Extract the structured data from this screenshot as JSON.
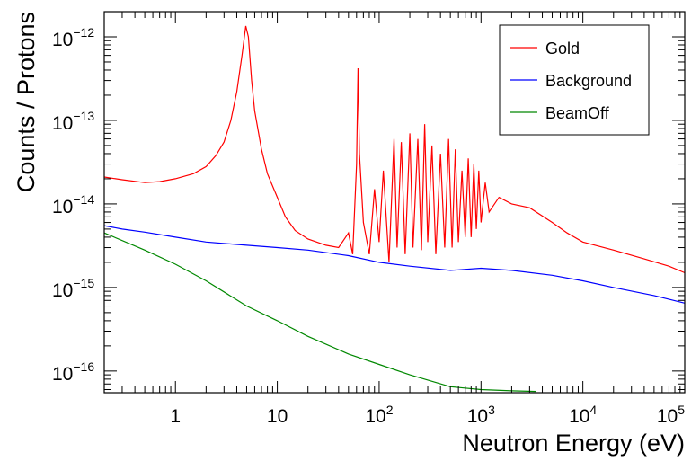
{
  "chart_data": {
    "type": "line",
    "title": "",
    "xlabel": "Neutron Energy (eV)",
    "ylabel": "Counts / Protons",
    "xscale": "log",
    "yscale": "log",
    "xlim": [
      0.2,
      100000
    ],
    "ylim": [
      5.5e-17,
      2e-12
    ],
    "grid": false,
    "legend_position": "top-right",
    "x_tick_labels": [
      {
        "value": 1,
        "base": "1",
        "exp": ""
      },
      {
        "value": 10,
        "base": "10",
        "exp": ""
      },
      {
        "value": 100,
        "base": "10",
        "exp": "2"
      },
      {
        "value": 1000,
        "base": "10",
        "exp": "3"
      },
      {
        "value": 10000,
        "base": "10",
        "exp": "4"
      },
      {
        "value": 100000,
        "base": "10",
        "exp": "5"
      }
    ],
    "y_tick_labels": [
      {
        "value": 1e-16,
        "base": "10",
        "exp": "−16"
      },
      {
        "value": 1e-15,
        "base": "10",
        "exp": "−15"
      },
      {
        "value": 1e-14,
        "base": "10",
        "exp": "−14"
      },
      {
        "value": 1e-13,
        "base": "10",
        "exp": "−13"
      },
      {
        "value": 1e-12,
        "base": "10",
        "exp": "−12"
      }
    ],
    "series": [
      {
        "name": "Gold",
        "color": "#ff0000",
        "points": [
          [
            0.2,
            2.1e-14
          ],
          [
            0.3,
            1.95e-14
          ],
          [
            0.5,
            1.8e-14
          ],
          [
            0.7,
            1.85e-14
          ],
          [
            1.0,
            2e-14
          ],
          [
            1.5,
            2.3e-14
          ],
          [
            2.0,
            2.8e-14
          ],
          [
            2.5,
            3.8e-14
          ],
          [
            3.0,
            5.5e-14
          ],
          [
            3.5,
            1e-13
          ],
          [
            4.0,
            2.2e-13
          ],
          [
            4.5,
            6e-13
          ],
          [
            4.9,
            1.35e-12
          ],
          [
            5.2,
            1e-12
          ],
          [
            5.6,
            3e-13
          ],
          [
            6.0,
            1.3e-13
          ],
          [
            7.0,
            4.5e-14
          ],
          [
            8.0,
            2.3e-14
          ],
          [
            10,
            1.2e-14
          ],
          [
            12,
            7e-15
          ],
          [
            15,
            4.8e-15
          ],
          [
            20,
            3.8e-15
          ],
          [
            30,
            3.2e-15
          ],
          [
            40,
            3e-15
          ],
          [
            50,
            4.5e-15
          ],
          [
            55,
            2.5e-15
          ],
          [
            60,
            3e-14
          ],
          [
            62,
            4.2e-13
          ],
          [
            64,
            4e-14
          ],
          [
            70,
            6e-15
          ],
          [
            80,
            2.5e-15
          ],
          [
            90,
            1.5e-14
          ],
          [
            100,
            3.5e-15
          ],
          [
            110,
            2.5e-14
          ],
          [
            125,
            2e-15
          ],
          [
            140,
            6e-14
          ],
          [
            150,
            3e-15
          ],
          [
            165,
            5.5e-14
          ],
          [
            180,
            2.5e-15
          ],
          [
            200,
            7e-14
          ],
          [
            215,
            3e-15
          ],
          [
            240,
            6e-14
          ],
          [
            260,
            2.8e-15
          ],
          [
            280,
            9e-14
          ],
          [
            300,
            3.5e-15
          ],
          [
            330,
            5e-14
          ],
          [
            360,
            2.5e-15
          ],
          [
            400,
            4e-14
          ],
          [
            440,
            3e-15
          ],
          [
            480,
            6e-14
          ],
          [
            520,
            3e-15
          ],
          [
            560,
            4.5e-14
          ],
          [
            600,
            3.5e-15
          ],
          [
            650,
            2.5e-14
          ],
          [
            700,
            4e-15
          ],
          [
            750,
            3.5e-14
          ],
          [
            800,
            4e-15
          ],
          [
            850,
            3e-14
          ],
          [
            900,
            5e-15
          ],
          [
            950,
            2.5e-14
          ],
          [
            1000,
            6e-15
          ],
          [
            1100,
            1.8e-14
          ],
          [
            1200,
            8e-15
          ],
          [
            1500,
            1.2e-14
          ],
          [
            2000,
            1e-14
          ],
          [
            3000,
            9e-15
          ],
          [
            5000,
            6e-15
          ],
          [
            7000,
            4.5e-15
          ],
          [
            10000,
            3.5e-15
          ],
          [
            20000,
            2.8e-15
          ],
          [
            40000,
            2.2e-15
          ],
          [
            70000,
            1.8e-15
          ],
          [
            100000,
            1.5e-15
          ]
        ]
      },
      {
        "name": "Background",
        "color": "#0000ff",
        "points": [
          [
            0.2,
            5.5e-15
          ],
          [
            0.3,
            5e-15
          ],
          [
            0.5,
            4.6e-15
          ],
          [
            1,
            4e-15
          ],
          [
            2,
            3.5e-15
          ],
          [
            5,
            3.2e-15
          ],
          [
            10,
            3e-15
          ],
          [
            20,
            2.8e-15
          ],
          [
            50,
            2.4e-15
          ],
          [
            100,
            2e-15
          ],
          [
            200,
            1.8e-15
          ],
          [
            500,
            1.6e-15
          ],
          [
            1000,
            1.7e-15
          ],
          [
            2000,
            1.6e-15
          ],
          [
            5000,
            1.4e-15
          ],
          [
            10000,
            1.2e-15
          ],
          [
            20000,
            1e-15
          ],
          [
            50000,
            8e-16
          ],
          [
            100000,
            6.5e-16
          ]
        ]
      },
      {
        "name": "BeamOff",
        "color": "#008800",
        "points": [
          [
            0.2,
            4.5e-15
          ],
          [
            0.5,
            2.8e-15
          ],
          [
            1,
            1.9e-15
          ],
          [
            2,
            1.2e-15
          ],
          [
            5,
            6e-16
          ],
          [
            10,
            4e-16
          ],
          [
            20,
            2.6e-16
          ],
          [
            50,
            1.6e-16
          ],
          [
            100,
            1.2e-16
          ],
          [
            200,
            9e-17
          ],
          [
            500,
            6.5e-17
          ],
          [
            1000,
            6e-17
          ],
          [
            2000,
            5.8e-17
          ],
          [
            3500,
            5.7e-17
          ]
        ]
      }
    ]
  }
}
